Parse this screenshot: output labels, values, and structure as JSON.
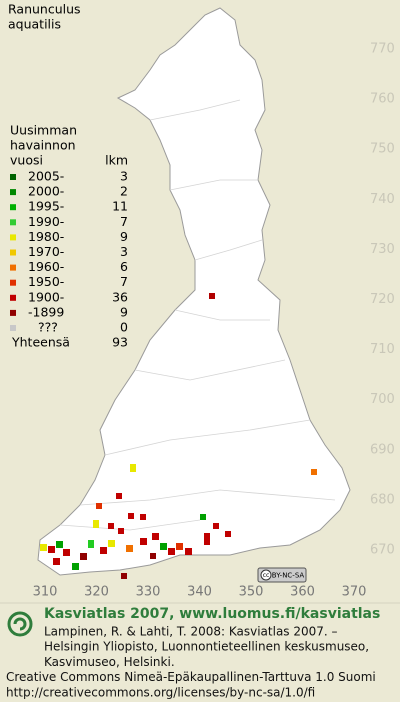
{
  "title_lines": [
    "Ranunculus",
    "aquatilis"
  ],
  "legend": {
    "heading": [
      "Uusimman",
      "havainnon",
      "vuosi"
    ],
    "count_heading": "lkm",
    "rows": [
      {
        "label": "2005-",
        "count": 3,
        "color": "#006400"
      },
      {
        "label": "2000-",
        "count": 2,
        "color": "#008800"
      },
      {
        "label": "1995-",
        "count": 11,
        "color": "#00b000"
      },
      {
        "label": "1990-",
        "count": 7,
        "color": "#33cc33"
      },
      {
        "label": "1980-",
        "count": 9,
        "color": "#e8e800"
      },
      {
        "label": "1970-",
        "count": 3,
        "color": "#f0c800"
      },
      {
        "label": "1960-",
        "count": 6,
        "color": "#f07000"
      },
      {
        "label": "1950-",
        "count": 7,
        "color": "#e03000"
      },
      {
        "label": "1900-",
        "count": 36,
        "color": "#c00000"
      },
      {
        "label": "-1899",
        "count": 9,
        "color": "#900000"
      },
      {
        "label": "???",
        "count": 0,
        "color": "#c8c8c8"
      }
    ],
    "total": {
      "label": "Yhteensä",
      "count": 93
    }
  },
  "grid": {
    "y_labels": [
      770,
      760,
      750,
      740,
      730,
      720,
      710,
      700,
      690,
      680,
      670
    ],
    "x_labels": [
      310,
      320,
      330,
      340,
      350,
      360,
      370
    ]
  },
  "license_badge": {
    "mark": "cc",
    "terms": "BY-NC-SA"
  },
  "footer": {
    "headline": "Kasviatlas 2007, www.luomus.fi/kasviatlas",
    "lines": [
      "Lampinen, R. & Lahti, T. 2008: Kasviatlas 2007. –",
      "Helsingin Yliopisto, Luonnontieteellinen keskusmuseo,",
      "Kasvimuseo, Helsinki.",
      "Creative Commons Nimeä-Epäkaupallinen-Tarttuva 1.0 Suomi",
      "http://creativecommons.org/licenses/by-nc-sa/1.0/fi"
    ]
  }
}
